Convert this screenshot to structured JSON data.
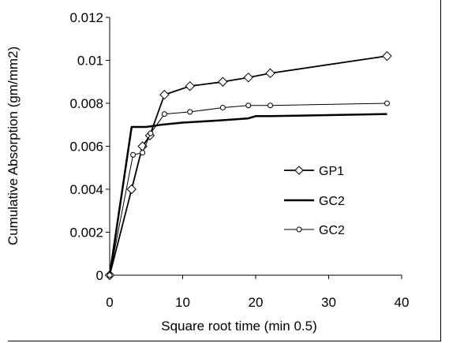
{
  "chart_data": {
    "type": "line",
    "title": "",
    "xlabel": "Square root time (min 0.5)",
    "ylabel": "Cumulative Absorption (gm/mm2)",
    "xlim": [
      0,
      40
    ],
    "ylim": [
      0,
      0.012
    ],
    "x_ticks": [
      "0",
      "10",
      "20",
      "30",
      "40"
    ],
    "y_ticks": [
      "0",
      "0.002",
      "0.004",
      "0.006",
      "0.008",
      "0.01",
      "0.012"
    ],
    "grid": false,
    "legend_position": "right-middle",
    "series": [
      {
        "name": "GP1",
        "marker": "diamond",
        "color": "#000000",
        "x": [
          0,
          3,
          4.5,
          5.5,
          7.5,
          11,
          15.5,
          19,
          22,
          38
        ],
        "y": [
          0,
          0.004,
          0.006,
          0.0065,
          0.0084,
          0.0088,
          0.009,
          0.0092,
          0.0094,
          0.0102
        ]
      },
      {
        "name": "GC2",
        "marker": "none",
        "color": "#000000",
        "x": [
          0,
          3,
          4,
          5,
          7,
          10,
          15,
          19,
          20,
          22,
          38
        ],
        "y": [
          0,
          0.0069,
          0.0069,
          0.0069,
          0.007,
          0.0071,
          0.0072,
          0.0073,
          0.0074,
          0.0074,
          0.0075
        ]
      },
      {
        "name": "GC2",
        "marker": "circle",
        "color": "#000000",
        "x": [
          0,
          3.2,
          4.5,
          5.6,
          7.5,
          11,
          15.5,
          19,
          22,
          38
        ],
        "y": [
          0,
          0.0056,
          0.0057,
          0.0066,
          0.0075,
          0.0076,
          0.0078,
          0.0079,
          0.0079,
          0.008
        ]
      }
    ]
  }
}
